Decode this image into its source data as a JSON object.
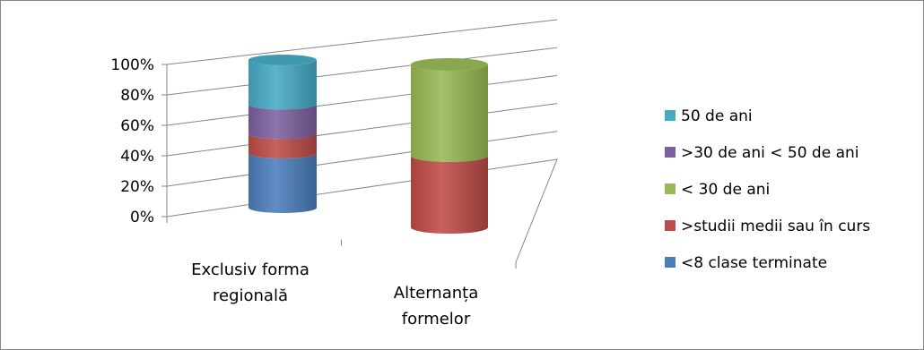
{
  "chart_data": {
    "type": "bar",
    "stacked": true,
    "percent": true,
    "three_d": true,
    "bar_shape": "cylinder",
    "categories": [
      [
        "Exclusiv forma",
        "regională"
      ],
      [
        "Alternanța",
        "formelor"
      ]
    ],
    "series": [
      {
        "name": "<8 clase terminate",
        "color": "#4a7ebb",
        "values": [
          37,
          0
        ]
      },
      {
        "name": ">studii medii sau în curs",
        "color": "#be4b48",
        "values": [
          13,
          44
        ]
      },
      {
        "name": "< 30 de ani",
        "color": "#98b954",
        "values": [
          0,
          56
        ]
      },
      {
        "name": ">30 de ani < 50 de ani",
        "color": "#7d60a0",
        "values": [
          20,
          0
        ]
      },
      {
        "name": "50 de ani",
        "color": "#46aac5",
        "values": [
          30,
          0
        ]
      }
    ],
    "legend_order": [
      4,
      3,
      2,
      1,
      0
    ],
    "y_ticks": [
      "0%",
      "20%",
      "40%",
      "60%",
      "80%",
      "100%"
    ],
    "ylim": [
      0,
      100
    ],
    "grid": true,
    "legend_position": "right"
  }
}
